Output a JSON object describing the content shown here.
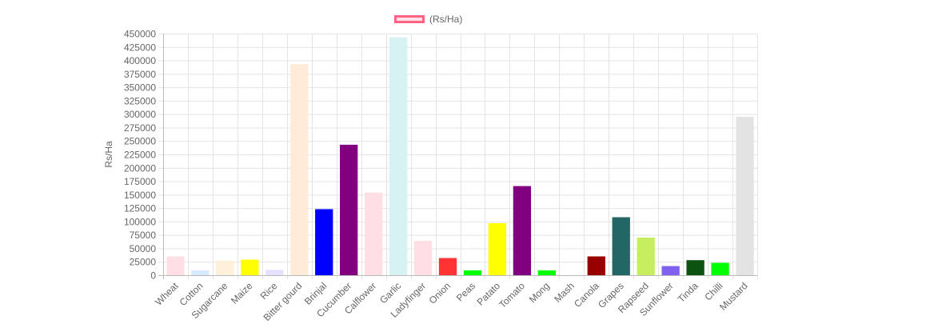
{
  "chart_data": {
    "type": "bar",
    "title": "",
    "xlabel": "",
    "ylabel": "Rs/Ha",
    "ylim": [
      0,
      450000
    ],
    "ytick_step": 25000,
    "grid": true,
    "legend": {
      "position": "top-center",
      "label": "(Rs/Ha)",
      "color": "#ff6384"
    },
    "categories": [
      "Wheat",
      "Cotton",
      "Sugarcane",
      "Maize",
      "Rice",
      "Bitter gourd",
      "Brinjal",
      "Cucumber",
      "Calflower",
      "Garlic",
      "Ladyfinger",
      "Onion",
      "Peas",
      "Patato",
      "Tomato",
      "Mong",
      "Mash",
      "Canola",
      "Grapes",
      "Rapseed",
      "Sunflower",
      "Tinda",
      "Chilli",
      "Mustard"
    ],
    "series": [
      {
        "name": "(Rs/Ha)",
        "values": [
          35000,
          9000,
          27000,
          29000,
          10000,
          393000,
          123000,
          243000,
          154000,
          443000,
          64000,
          32000,
          9000,
          97000,
          166000,
          9000,
          0,
          35000,
          108000,
          70000,
          17000,
          28000,
          23000,
          295000
        ],
        "colors": [
          "#ffdfe5",
          "#d6ebff",
          "#fff0da",
          "#ffff00",
          "#e6e1ff",
          "#ffebd8",
          "#0000ff",
          "#800080",
          "#ffdfe5",
          "#d6f2f2",
          "#ffdfe5",
          "#ff3333",
          "#00ff00",
          "#ffff00",
          "#800080",
          "#00ff00",
          "#cccccc",
          "#990000",
          "#226666",
          "#c6ee5e",
          "#8060ee",
          "#0d5210",
          "#00ff00",
          "#e3e3e3"
        ]
      }
    ]
  }
}
